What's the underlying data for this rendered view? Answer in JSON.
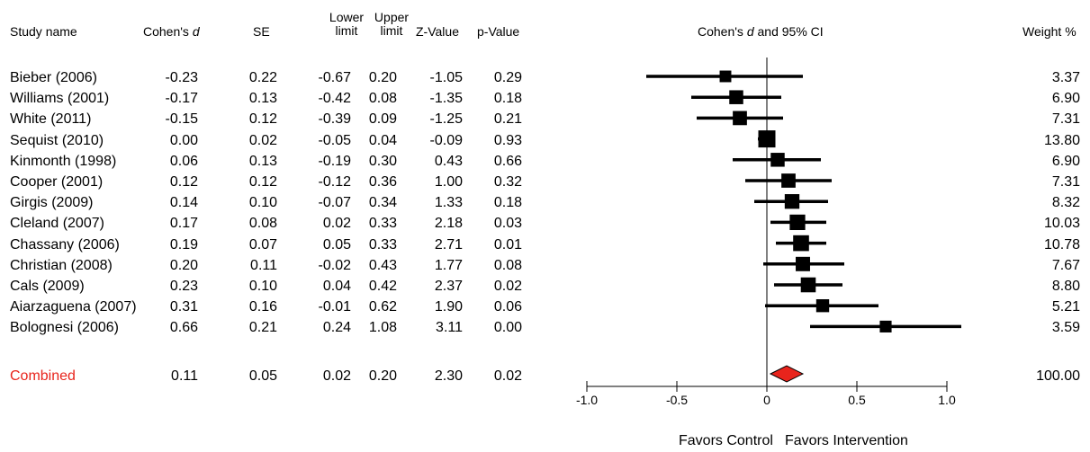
{
  "headers": {
    "study_name": "Study name",
    "cohens_d_prefix": "Cohen's ",
    "cohens_d_italic": "d",
    "se": "SE",
    "lower_1": "Lower",
    "lower_2": "limit",
    "upper_1": "Upper",
    "upper_2": "limit",
    "z_value": "Z-Value",
    "p_value": "p-Value",
    "plot_prefix": "Cohen's ",
    "plot_italic": "d",
    "plot_suffix": " and 95% CI",
    "weight": "Weight %"
  },
  "rows": [
    {
      "name": "Bieber (2006)",
      "d": "-0.23",
      "se": "0.22",
      "lower": "-0.67",
      "upper": "0.20",
      "z": "-1.05",
      "p": "0.29",
      "weight": "3.37"
    },
    {
      "name": "Williams (2001)",
      "d": "-0.17",
      "se": "0.13",
      "lower": "-0.42",
      "upper": "0.08",
      "z": "-1.35",
      "p": "0.18",
      "weight": "6.90"
    },
    {
      "name": "White (2011)",
      "d": "-0.15",
      "se": "0.12",
      "lower": "-0.39",
      "upper": "0.09",
      "z": "-1.25",
      "p": "0.21",
      "weight": "7.31"
    },
    {
      "name": "Sequist (2010)",
      "d": "0.00",
      "se": "0.02",
      "lower": "-0.05",
      "upper": "0.04",
      "z": "-0.09",
      "p": "0.93",
      "weight": "13.80"
    },
    {
      "name": "Kinmonth (1998)",
      "d": "0.06",
      "se": "0.13",
      "lower": "-0.19",
      "upper": "0.30",
      "z": "0.43",
      "p": "0.66",
      "weight": "6.90"
    },
    {
      "name": "Cooper (2001)",
      "d": "0.12",
      "se": "0.12",
      "lower": "-0.12",
      "upper": "0.36",
      "z": "1.00",
      "p": "0.32",
      "weight": "7.31"
    },
    {
      "name": "Girgis (2009)",
      "d": "0.14",
      "se": "0.10",
      "lower": "-0.07",
      "upper": "0.34",
      "z": "1.33",
      "p": "0.18",
      "weight": "8.32"
    },
    {
      "name": "Cleland (2007)",
      "d": "0.17",
      "se": "0.08",
      "lower": "0.02",
      "upper": "0.33",
      "z": "2.18",
      "p": "0.03",
      "weight": "10.03"
    },
    {
      "name": "Chassany (2006)",
      "d": "0.19",
      "se": "0.07",
      "lower": "0.05",
      "upper": "0.33",
      "z": "2.71",
      "p": "0.01",
      "weight": "10.78"
    },
    {
      "name": "Christian (2008)",
      "d": "0.20",
      "se": "0.11",
      "lower": "-0.02",
      "upper": "0.43",
      "z": "1.77",
      "p": "0.08",
      "weight": "7.67"
    },
    {
      "name": "Cals (2009)",
      "d": "0.23",
      "se": "0.10",
      "lower": "0.04",
      "upper": "0.42",
      "z": "2.37",
      "p": "0.02",
      "weight": "8.80"
    },
    {
      "name": "Aiarzaguena (2007)",
      "d": "0.31",
      "se": "0.16",
      "lower": "-0.01",
      "upper": "0.62",
      "z": "1.90",
      "p": "0.06",
      "weight": "5.21"
    },
    {
      "name": "Bolognesi (2006)",
      "d": "0.66",
      "se": "0.21",
      "lower": "0.24",
      "upper": "1.08",
      "z": "3.11",
      "p": "0.00",
      "weight": "3.59"
    }
  ],
  "combined": {
    "name": "Combined",
    "d": "0.11",
    "se": "0.05",
    "lower": "0.02",
    "upper": "0.20",
    "z": "2.30",
    "p": "0.02",
    "weight": "100.00"
  },
  "favors": {
    "left": "Favors Control",
    "right": "Favors Intervention"
  },
  "colors": {
    "combined_text": "#e8241c",
    "diamond_fill": "#e8241c",
    "marker": "#000000"
  },
  "chart_data": {
    "type": "forest",
    "x_ticks": [
      "-1.0",
      "-0.5",
      "0",
      "0.5",
      "1.0"
    ],
    "xlim": [
      -1.0,
      1.0
    ],
    "reference_line": 0,
    "studies": [
      {
        "name": "Bieber (2006)",
        "d": -0.23,
        "lower": -0.67,
        "upper": 0.2,
        "weight": 3.37
      },
      {
        "name": "Williams (2001)",
        "d": -0.17,
        "lower": -0.42,
        "upper": 0.08,
        "weight": 6.9
      },
      {
        "name": "White (2011)",
        "d": -0.15,
        "lower": -0.39,
        "upper": 0.09,
        "weight": 7.31
      },
      {
        "name": "Sequist (2010)",
        "d": 0.0,
        "lower": -0.05,
        "upper": 0.04,
        "weight": 13.8
      },
      {
        "name": "Kinmonth (1998)",
        "d": 0.06,
        "lower": -0.19,
        "upper": 0.3,
        "weight": 6.9
      },
      {
        "name": "Cooper (2001)",
        "d": 0.12,
        "lower": -0.12,
        "upper": 0.36,
        "weight": 7.31
      },
      {
        "name": "Girgis (2009)",
        "d": 0.14,
        "lower": -0.07,
        "upper": 0.34,
        "weight": 8.32
      },
      {
        "name": "Cleland (2007)",
        "d": 0.17,
        "lower": 0.02,
        "upper": 0.33,
        "weight": 10.03
      },
      {
        "name": "Chassany (2006)",
        "d": 0.19,
        "lower": 0.05,
        "upper": 0.33,
        "weight": 10.78
      },
      {
        "name": "Christian (2008)",
        "d": 0.2,
        "lower": -0.02,
        "upper": 0.43,
        "weight": 7.67
      },
      {
        "name": "Cals (2009)",
        "d": 0.23,
        "lower": 0.04,
        "upper": 0.42,
        "weight": 8.8
      },
      {
        "name": "Aiarzaguena (2007)",
        "d": 0.31,
        "lower": -0.01,
        "upper": 0.62,
        "weight": 5.21
      },
      {
        "name": "Bolognesi (2006)",
        "d": 0.66,
        "lower": 0.24,
        "upper": 1.08,
        "weight": 3.59
      }
    ],
    "combined": {
      "d": 0.11,
      "lower": 0.02,
      "upper": 0.2,
      "weight": 100.0
    }
  }
}
